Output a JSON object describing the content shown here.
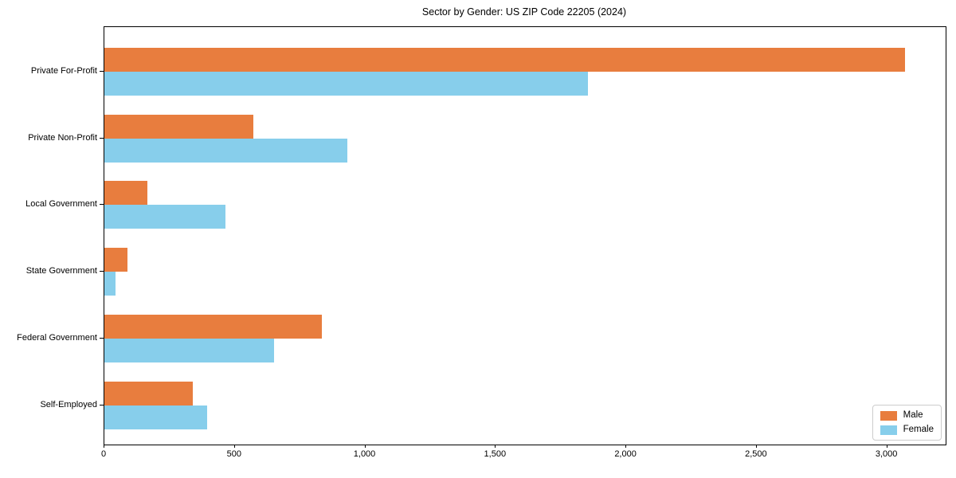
{
  "chart_data": {
    "type": "bar",
    "orientation": "horizontal",
    "title": "Sector by Gender: US ZIP Code 22205 (2024)",
    "categories": [
      "Private For-Profit",
      "Private Non-Profit",
      "Local Government",
      "State Government",
      "Federal Government",
      "Self-Employed"
    ],
    "series": [
      {
        "name": "Male",
        "color": "#E87D3E",
        "values": [
          3068,
          570,
          164,
          89,
          834,
          339
        ]
      },
      {
        "name": "Female",
        "color": "#87CEEB",
        "values": [
          1854,
          932,
          463,
          43,
          651,
          395
        ]
      }
    ],
    "xlabel": "",
    "ylabel": "",
    "xlim": [
      0,
      3224
    ],
    "xticks": [
      {
        "value": 0,
        "label": "0"
      },
      {
        "value": 500,
        "label": "500"
      },
      {
        "value": 1000,
        "label": "1,000"
      },
      {
        "value": 1500,
        "label": "1,500"
      },
      {
        "value": 2000,
        "label": "2,000"
      },
      {
        "value": 2500,
        "label": "2,500"
      },
      {
        "value": 3000,
        "label": "3,000"
      }
    ],
    "grid": false,
    "legend_position": "lower right"
  }
}
